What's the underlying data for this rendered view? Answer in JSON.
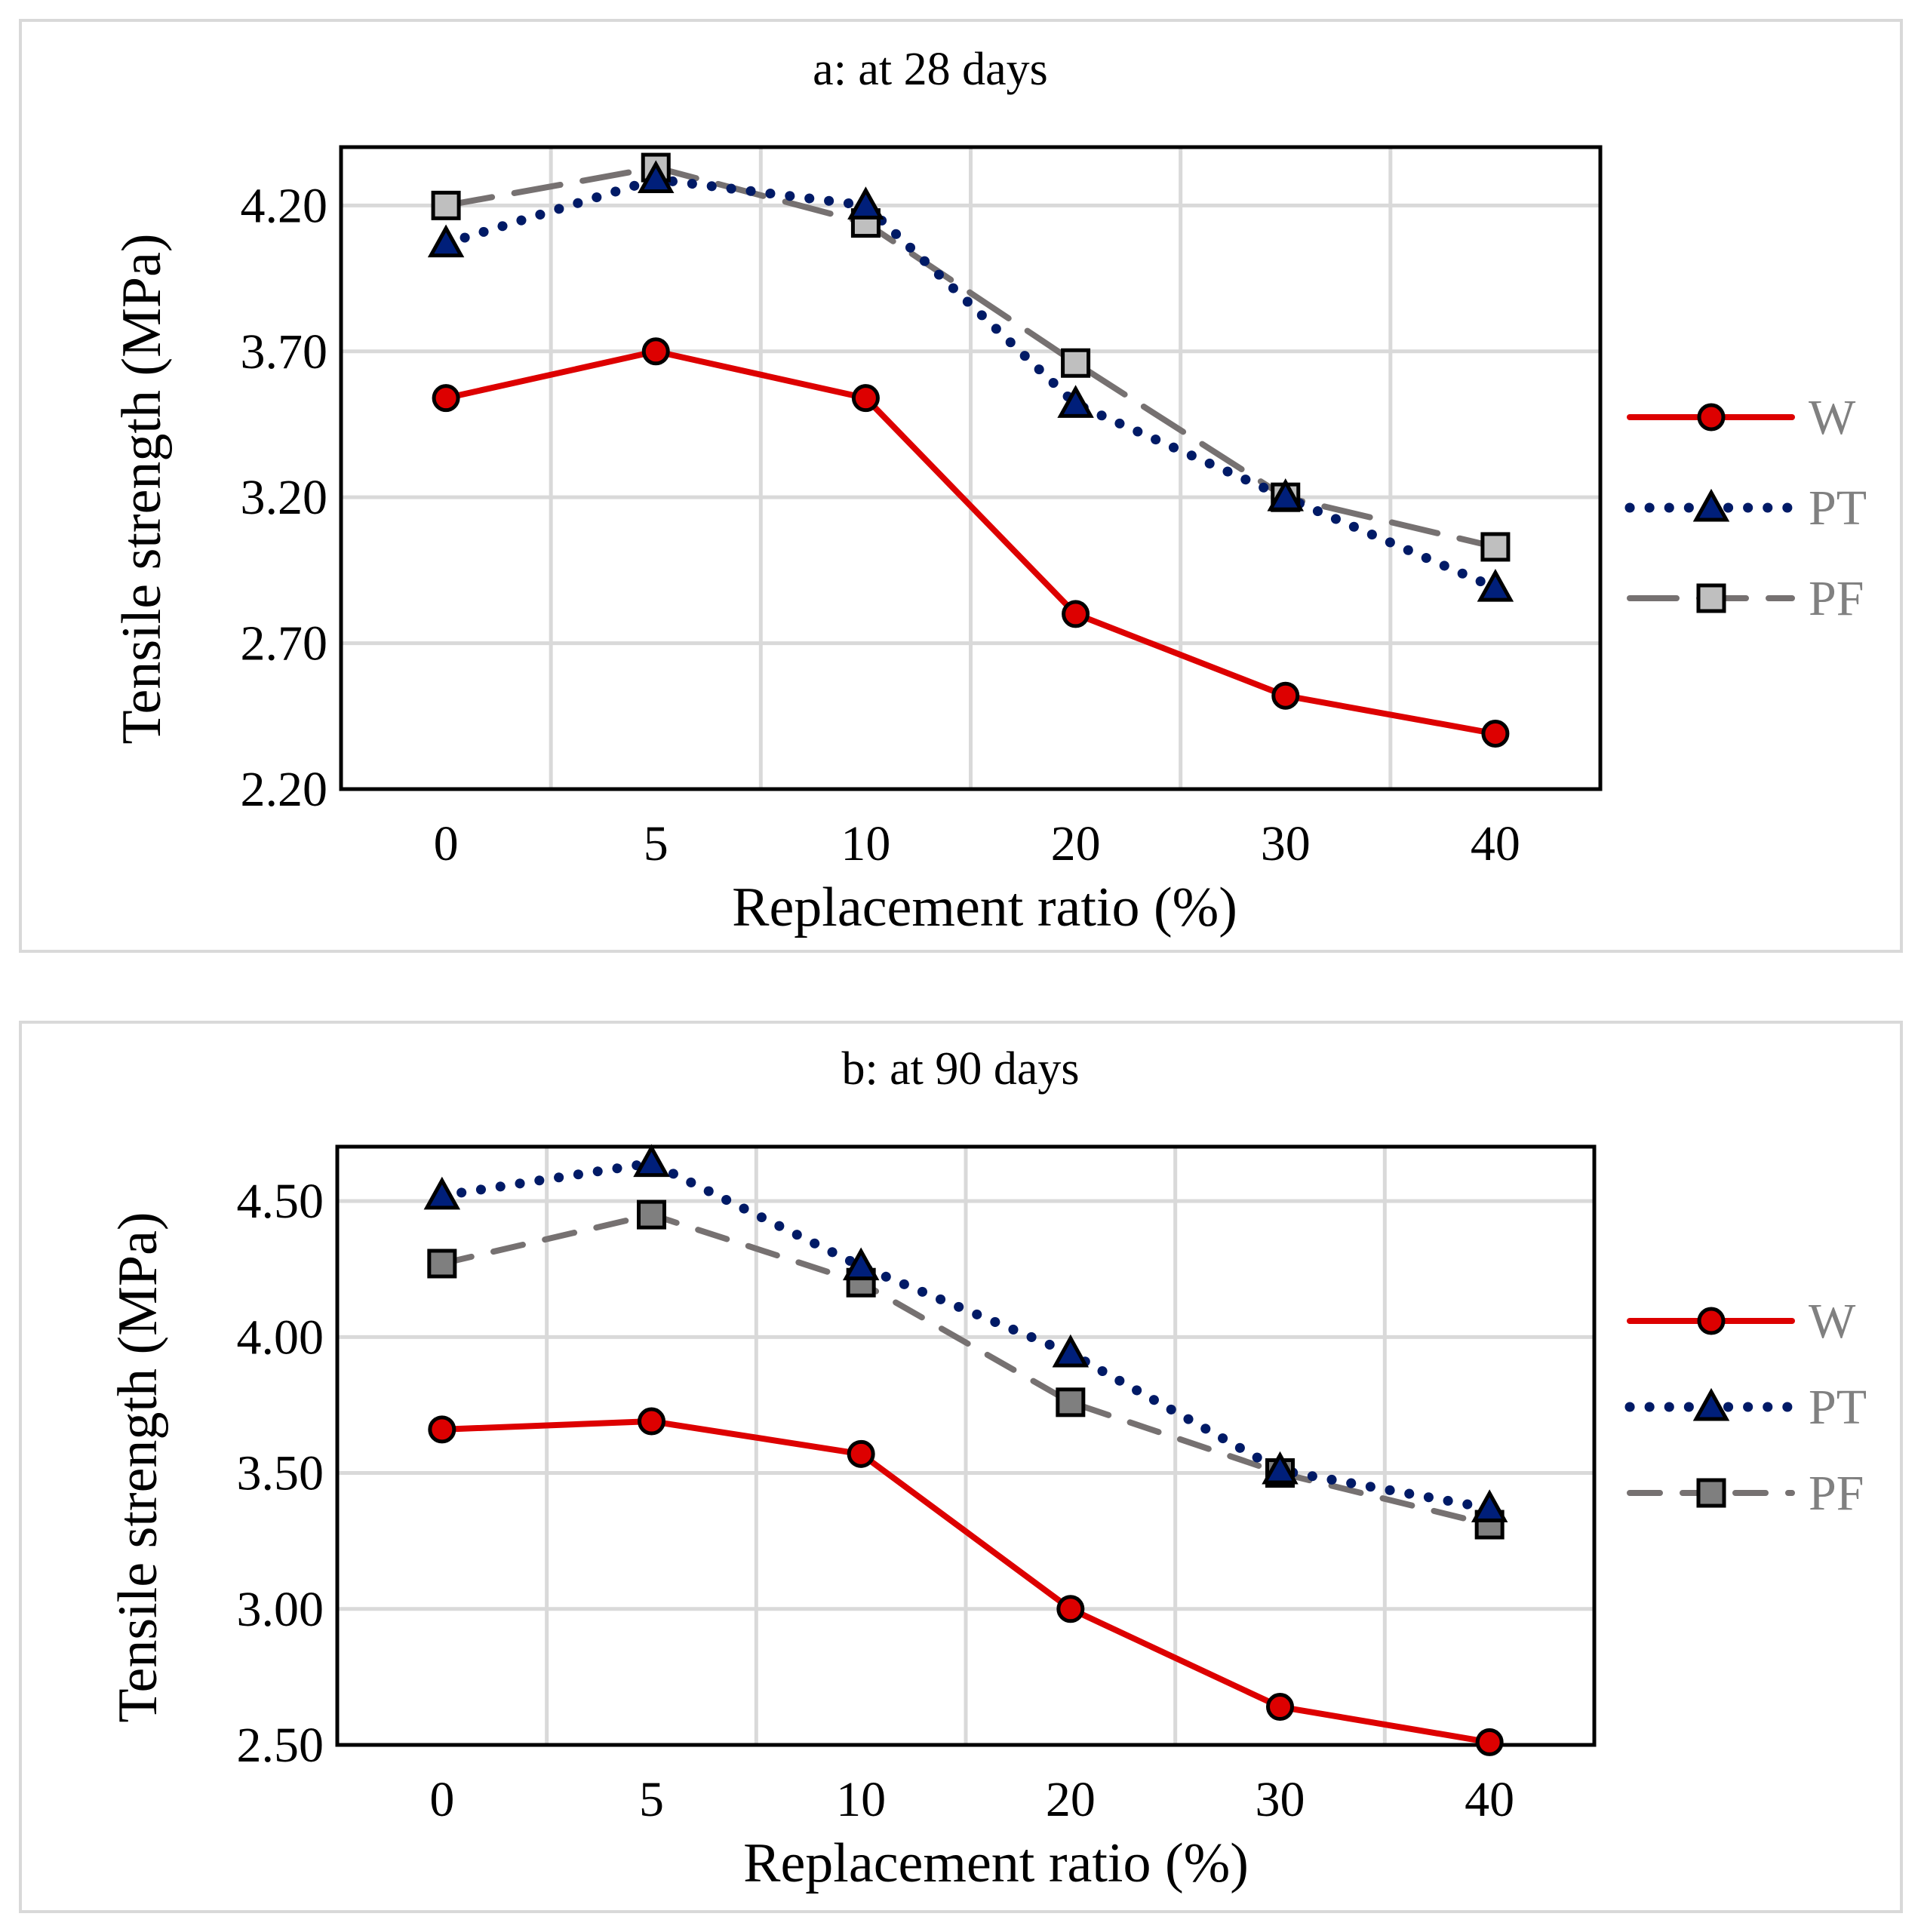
{
  "chart_data": [
    {
      "type": "line",
      "title": "a: at 28 days",
      "xlabel": "Replacement ratio (%)",
      "ylabel": "Tensile strength (MPa)",
      "categories": [
        "0",
        "5",
        "10",
        "20",
        "30",
        "40"
      ],
      "yticks": [
        "2.20",
        "2.70",
        "3.20",
        "3.70",
        "4.20"
      ],
      "ylim": [
        2.2,
        4.4
      ],
      "grid": true,
      "legend": "right",
      "series": [
        {
          "name": "W",
          "color": "#dd0000",
          "marker": "circle",
          "line": "solid",
          "marker_fill": "#dd0000",
          "values": [
            3.54,
            3.7,
            3.54,
            2.8,
            2.52,
            2.39
          ]
        },
        {
          "name": "PT",
          "color": "#001a66",
          "marker": "triangle",
          "line": "dotted",
          "marker_fill": "#001f7a",
          "values": [
            4.07,
            4.29,
            4.2,
            3.52,
            3.2,
            2.89
          ]
        },
        {
          "name": "PF",
          "color": "#767171",
          "marker": "square",
          "line": "dashed",
          "marker_fill": "#bfbfbf",
          "values": [
            4.2,
            4.33,
            4.14,
            3.66,
            3.2,
            3.03
          ]
        }
      ]
    },
    {
      "type": "line",
      "title": "b: at 90 days",
      "xlabel": "Replacement ratio (%)",
      "ylabel": "Tensile strength (MPa)",
      "categories": [
        "0",
        "5",
        "10",
        "20",
        "30",
        "40"
      ],
      "yticks": [
        "2.50",
        "3.00",
        "3.50",
        "4.00",
        "4.50"
      ],
      "ylim": [
        2.5,
        4.7
      ],
      "grid": true,
      "legend": "right",
      "series": [
        {
          "name": "W",
          "color": "#dd0000",
          "marker": "circle",
          "line": "solid",
          "marker_fill": "#dd0000",
          "values": [
            3.66,
            3.69,
            3.57,
            3.0,
            2.64,
            2.51
          ]
        },
        {
          "name": "PT",
          "color": "#001a66",
          "marker": "triangle",
          "line": "dotted",
          "marker_fill": "#001f7a",
          "values": [
            4.52,
            4.64,
            4.26,
            3.94,
            3.51,
            3.37
          ]
        },
        {
          "name": "PF",
          "color": "#767171",
          "marker": "square",
          "line": "dashed",
          "marker_fill": "#7f7f7f",
          "values": [
            4.27,
            4.45,
            4.2,
            3.76,
            3.5,
            3.31
          ]
        }
      ]
    }
  ]
}
